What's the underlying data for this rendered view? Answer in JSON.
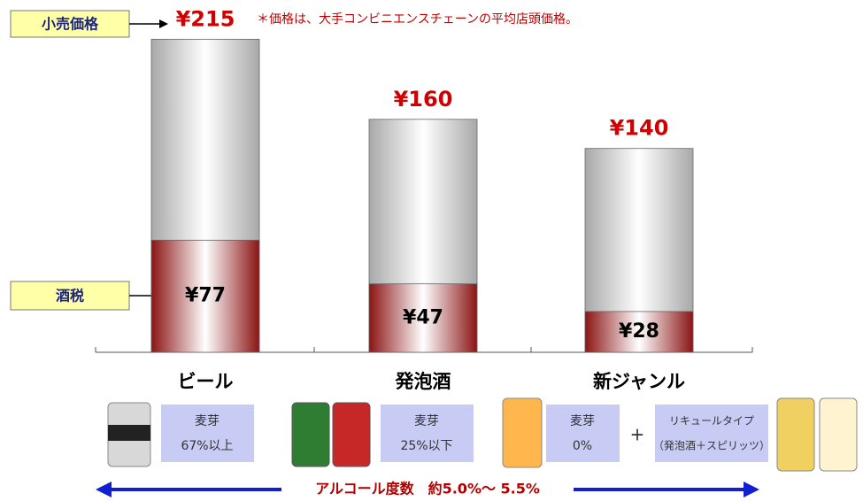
{
  "chart_data": {
    "type": "bar",
    "note": "＊価格は、大手コンビニエンスチェーンの平均店頭価格。",
    "categories": [
      "ビール",
      "発泡酒",
      "新ジャンル"
    ],
    "series": [
      {
        "name": "小売価格",
        "color": "#a8a8a8",
        "values": [
          215,
          160,
          140
        ],
        "value_labels": [
          "¥215",
          "¥160",
          "¥140"
        ]
      },
      {
        "name": "酒税",
        "color": "#8b1414",
        "values": [
          77,
          47,
          28
        ],
        "value_labels": [
          "¥77",
          "¥47",
          "¥28"
        ]
      }
    ]
  },
  "product_notes": [
    [
      "麦芽",
      "67%以上"
    ],
    [
      "麦芽",
      "25%以下"
    ],
    [
      "麦芽",
      "0%"
    ]
  ],
  "plus": "+",
  "liqueur_note": [
    "リキュールタイプ",
    "（発泡酒＋スピリッツ）"
  ],
  "alcohol_note": "アルコール度数　約5.0%～ 5.5%"
}
